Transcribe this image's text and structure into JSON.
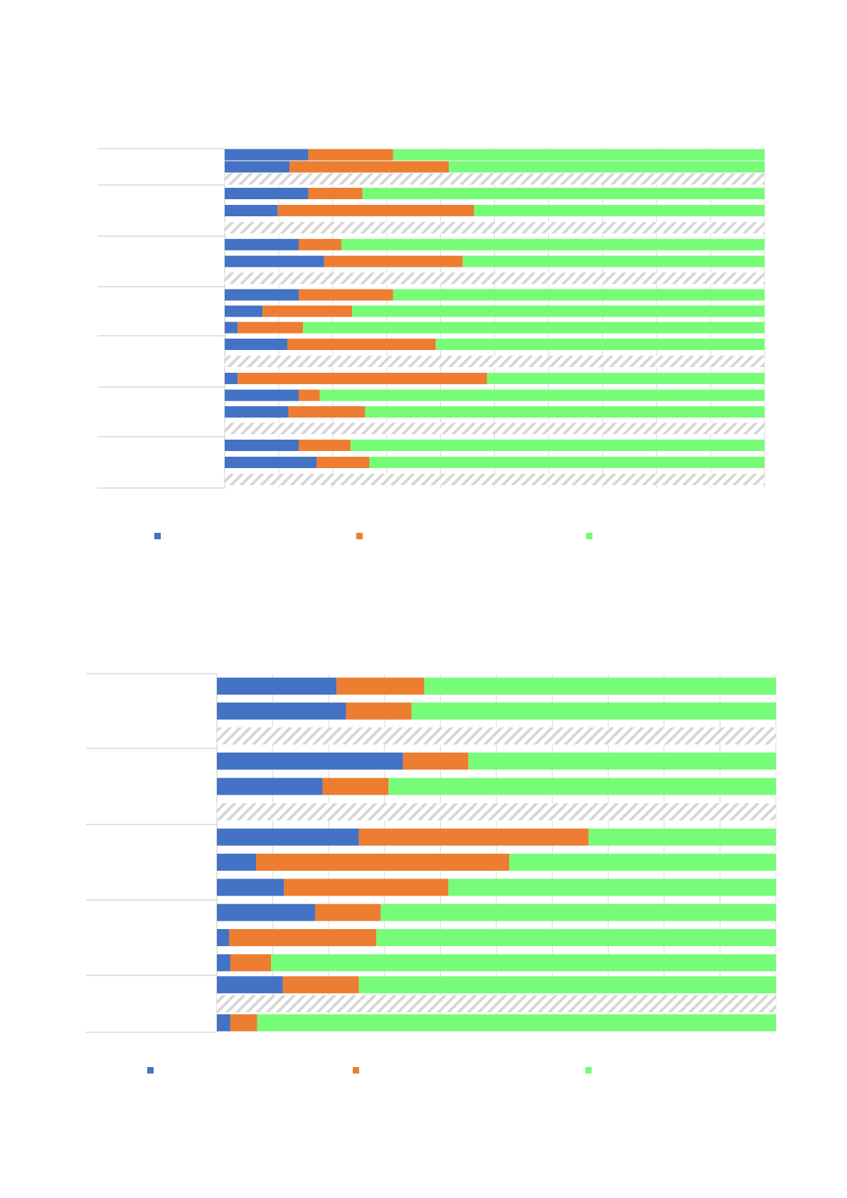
{
  "colors": {
    "series1": "#4472c4",
    "series2": "#ed7d31",
    "series3": "#77fc77",
    "grid": "#d9d9d9",
    "empty_bar_hatch": "#d6d6d6"
  },
  "chart_data": [
    {
      "type": "bar",
      "orientation": "horizontal",
      "stacked": "percent",
      "title": "",
      "xlabel": "",
      "ylabel": "",
      "xlim": [
        0,
        100
      ],
      "grid": true,
      "legend_position": "bottom",
      "series": [
        {
          "color_key": "series1"
        },
        {
          "color_key": "series2"
        },
        {
          "color_key": "series3"
        }
      ],
      "groups": [
        {
          "bars": [
            [
              15.5,
              15.7,
              68.8
            ],
            [
              12.0,
              29.5,
              58.5
            ],
            null
          ]
        },
        {
          "bars": [
            [
              15.5,
              10.0,
              74.5
            ],
            [
              9.8,
              36.4,
              53.8
            ],
            null
          ]
        },
        {
          "bars": [
            [
              13.7,
              7.9,
              78.4
            ],
            [
              18.4,
              25.7,
              55.9
            ],
            null
          ]
        },
        {
          "bars": [
            [
              13.7,
              17.5,
              68.8
            ],
            [
              7.0,
              16.6,
              76.4
            ],
            [
              2.4,
              12.1,
              85.5
            ]
          ]
        },
        {
          "bars": [
            [
              11.6,
              27.5,
              60.9
            ],
            null,
            [
              2.4,
              46.2,
              51.4
            ]
          ]
        },
        {
          "bars": [
            [
              13.7,
              3.9,
              82.4
            ],
            [
              11.8,
              14.2,
              74.0
            ],
            null
          ]
        },
        {
          "bars": [
            [
              13.7,
              9.6,
              76.7
            ],
            [
              17.0,
              9.8,
              73.2
            ],
            null
          ]
        }
      ]
    },
    {
      "type": "bar",
      "orientation": "horizontal",
      "stacked": "percent",
      "title": "",
      "xlabel": "",
      "ylabel": "",
      "xlim": [
        0,
        100
      ],
      "grid": true,
      "legend_position": "bottom",
      "series": [
        {
          "color_key": "series1"
        },
        {
          "color_key": "series2"
        },
        {
          "color_key": "series3"
        }
      ],
      "groups": [
        {
          "bars": [
            [
              21.4,
              15.7,
              62.9
            ],
            [
              23.1,
              11.7,
              65.2
            ],
            null
          ]
        },
        {
          "bars": [
            [
              33.3,
              11.7,
              55.0
            ],
            [
              18.9,
              11.8,
              69.3
            ],
            null
          ]
        },
        {
          "bars": [
            [
              25.4,
              41.1,
              33.5
            ],
            [
              7.0,
              45.3,
              47.7
            ],
            [
              12.0,
              29.4,
              58.6
            ]
          ]
        },
        {
          "bars": [
            [
              17.6,
              11.7,
              70.7
            ],
            [
              2.2,
              26.3,
              71.5
            ],
            [
              2.4,
              7.3,
              90.3
            ]
          ]
        },
        {
          "bars": [
            [
              11.8,
              13.6,
              74.6
            ],
            null,
            [
              2.4,
              4.8,
              92.8
            ]
          ]
        }
      ]
    }
  ]
}
